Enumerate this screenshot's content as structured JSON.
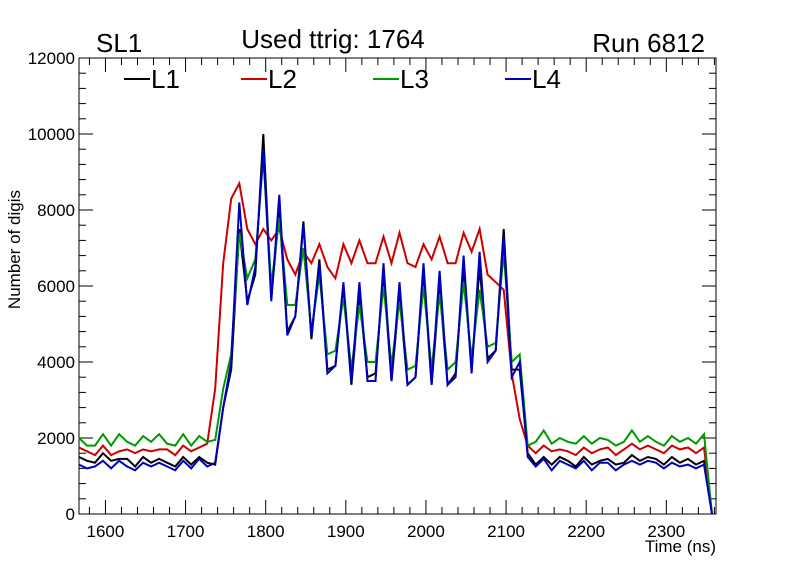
{
  "chart_data": {
    "type": "line",
    "title_left": "SL1",
    "title": "Used ttrig: 1764",
    "title_right": "Run 6812",
    "xlabel": "Time (ns)",
    "ylabel": "Number of digis",
    "xlim": [
      1567,
      2362
    ],
    "ylim": [
      0,
      12000
    ],
    "x_ticks": [
      1600,
      1700,
      1800,
      1900,
      2000,
      2100,
      2200,
      2300
    ],
    "y_ticks": [
      0,
      2000,
      4000,
      6000,
      8000,
      10000,
      12000
    ],
    "legend_position": "top",
    "x": [
      1567,
      1577,
      1587,
      1597,
      1607,
      1617,
      1627,
      1637,
      1647,
      1657,
      1667,
      1677,
      1687,
      1697,
      1707,
      1717,
      1727,
      1737,
      1747,
      1757,
      1767,
      1777,
      1787,
      1797,
      1807,
      1817,
      1827,
      1837,
      1847,
      1857,
      1867,
      1877,
      1887,
      1897,
      1907,
      1917,
      1927,
      1937,
      1947,
      1957,
      1967,
      1977,
      1987,
      1997,
      2007,
      2017,
      2027,
      2037,
      2047,
      2057,
      2067,
      2077,
      2087,
      2097,
      2107,
      2117,
      2127,
      2137,
      2147,
      2157,
      2167,
      2177,
      2187,
      2197,
      2207,
      2217,
      2227,
      2237,
      2247,
      2257,
      2267,
      2277,
      2287,
      2297,
      2307,
      2317,
      2327,
      2337,
      2347,
      2357
    ],
    "series": [
      {
        "name": "L1",
        "color": "#000000",
        "values": [
          1500,
          1400,
          1350,
          1600,
          1400,
          1450,
          1450,
          1250,
          1500,
          1350,
          1450,
          1350,
          1250,
          1500,
          1300,
          1500,
          1350,
          1300,
          2800,
          3800,
          7500,
          5600,
          6300,
          10000,
          5700,
          8000,
          4800,
          5200,
          7700,
          4600,
          6700,
          3800,
          3900,
          6000,
          3400,
          5800,
          3600,
          3700,
          6300,
          3500,
          5800,
          3400,
          3600,
          6400,
          3400,
          6000,
          3400,
          3700,
          6500,
          3800,
          6500,
          4100,
          4300,
          7500,
          3800,
          3800,
          1600,
          1300,
          1500,
          1300,
          1500,
          1400,
          1250,
          1500,
          1300,
          1400,
          1450,
          1300,
          1350,
          1550,
          1400,
          1500,
          1450,
          1300,
          1500,
          1350,
          1450,
          1300,
          1400,
          0
        ]
      },
      {
        "name": "L2",
        "color": "#cc0000",
        "values": [
          1750,
          1650,
          1550,
          1800,
          1550,
          1650,
          1700,
          1600,
          1700,
          1650,
          1700,
          1700,
          1550,
          1800,
          1650,
          1750,
          1850,
          3300,
          6600,
          8300,
          8700,
          7500,
          7100,
          7500,
          7200,
          7500,
          6700,
          6300,
          6900,
          6600,
          7100,
          6500,
          6200,
          7100,
          6600,
          7200,
          6600,
          6600,
          7300,
          6600,
          7400,
          6600,
          6500,
          7100,
          6700,
          7300,
          6600,
          6600,
          7400,
          6900,
          7500,
          6300,
          6100,
          5900,
          3700,
          2500,
          1800,
          1600,
          1800,
          1650,
          1700,
          1650,
          1550,
          1750,
          1600,
          1700,
          1750,
          1550,
          1700,
          1850,
          1700,
          1800,
          1700,
          1600,
          1800,
          1700,
          1750,
          1600,
          1750,
          0
        ]
      },
      {
        "name": "L3",
        "color": "#009900",
        "values": [
          2000,
          1800,
          1800,
          2100,
          1800,
          2100,
          1900,
          1800,
          2050,
          1900,
          2100,
          1850,
          1800,
          2100,
          1800,
          2050,
          1900,
          1950,
          3300,
          4200,
          7400,
          6200,
          6700,
          9400,
          6000,
          7800,
          5500,
          5500,
          7000,
          4800,
          6300,
          4200,
          4300,
          5700,
          3800,
          5500,
          4000,
          4000,
          6000,
          3900,
          5600,
          3800,
          3900,
          6000,
          3800,
          5800,
          3800,
          4000,
          6100,
          4100,
          5900,
          4400,
          4500,
          6900,
          4000,
          4200,
          1800,
          1900,
          2200,
          1850,
          2000,
          1900,
          1850,
          2050,
          1850,
          2000,
          1950,
          1800,
          1900,
          2200,
          1900,
          2050,
          1900,
          1800,
          2050,
          1900,
          2000,
          1850,
          2100,
          0
        ]
      },
      {
        "name": "L4",
        "color": "#0000bb",
        "values": [
          1300,
          1200,
          1250,
          1400,
          1200,
          1400,
          1250,
          1150,
          1350,
          1250,
          1350,
          1250,
          1150,
          1400,
          1200,
          1450,
          1250,
          1350,
          2800,
          4000,
          8200,
          5500,
          6500,
          9600,
          5600,
          8400,
          4700,
          5200,
          7600,
          4700,
          6600,
          3700,
          3900,
          6100,
          3500,
          6100,
          3500,
          3500,
          6600,
          3500,
          6100,
          3400,
          3600,
          6600,
          3400,
          6400,
          3400,
          3600,
          6800,
          3700,
          6900,
          4000,
          4300,
          7300,
          3600,
          4000,
          1500,
          1250,
          1450,
          1150,
          1400,
          1300,
          1200,
          1400,
          1150,
          1350,
          1350,
          1150,
          1300,
          1400,
          1300,
          1400,
          1350,
          1200,
          1350,
          1250,
          1300,
          1200,
          1300,
          0
        ]
      }
    ]
  }
}
